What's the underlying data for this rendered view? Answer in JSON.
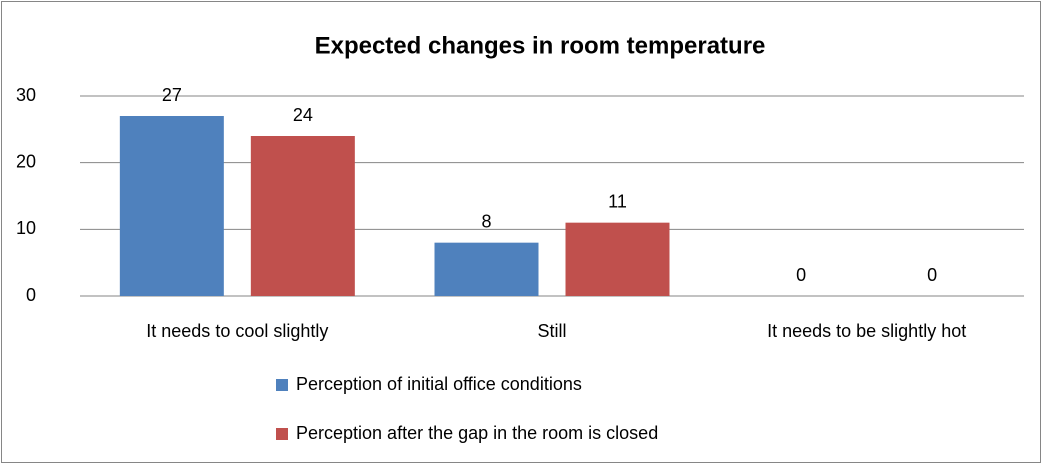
{
  "chart_data": {
    "type": "bar",
    "title": "Expected changes in room temperature",
    "categories": [
      "It needs to cool slightly",
      "Still",
      "It needs to be slightly hot"
    ],
    "series": [
      {
        "name": "Perception of initial office conditions",
        "color": "#4f81bd",
        "values": [
          27,
          8,
          0
        ]
      },
      {
        "name": "Perception after the gap in the room is closed",
        "color": "#c0504d",
        "values": [
          24,
          11,
          0
        ]
      }
    ],
    "ylim": [
      0,
      30
    ],
    "yticks": [
      0,
      10,
      20,
      30
    ],
    "grid": true,
    "legend": "bottom"
  }
}
